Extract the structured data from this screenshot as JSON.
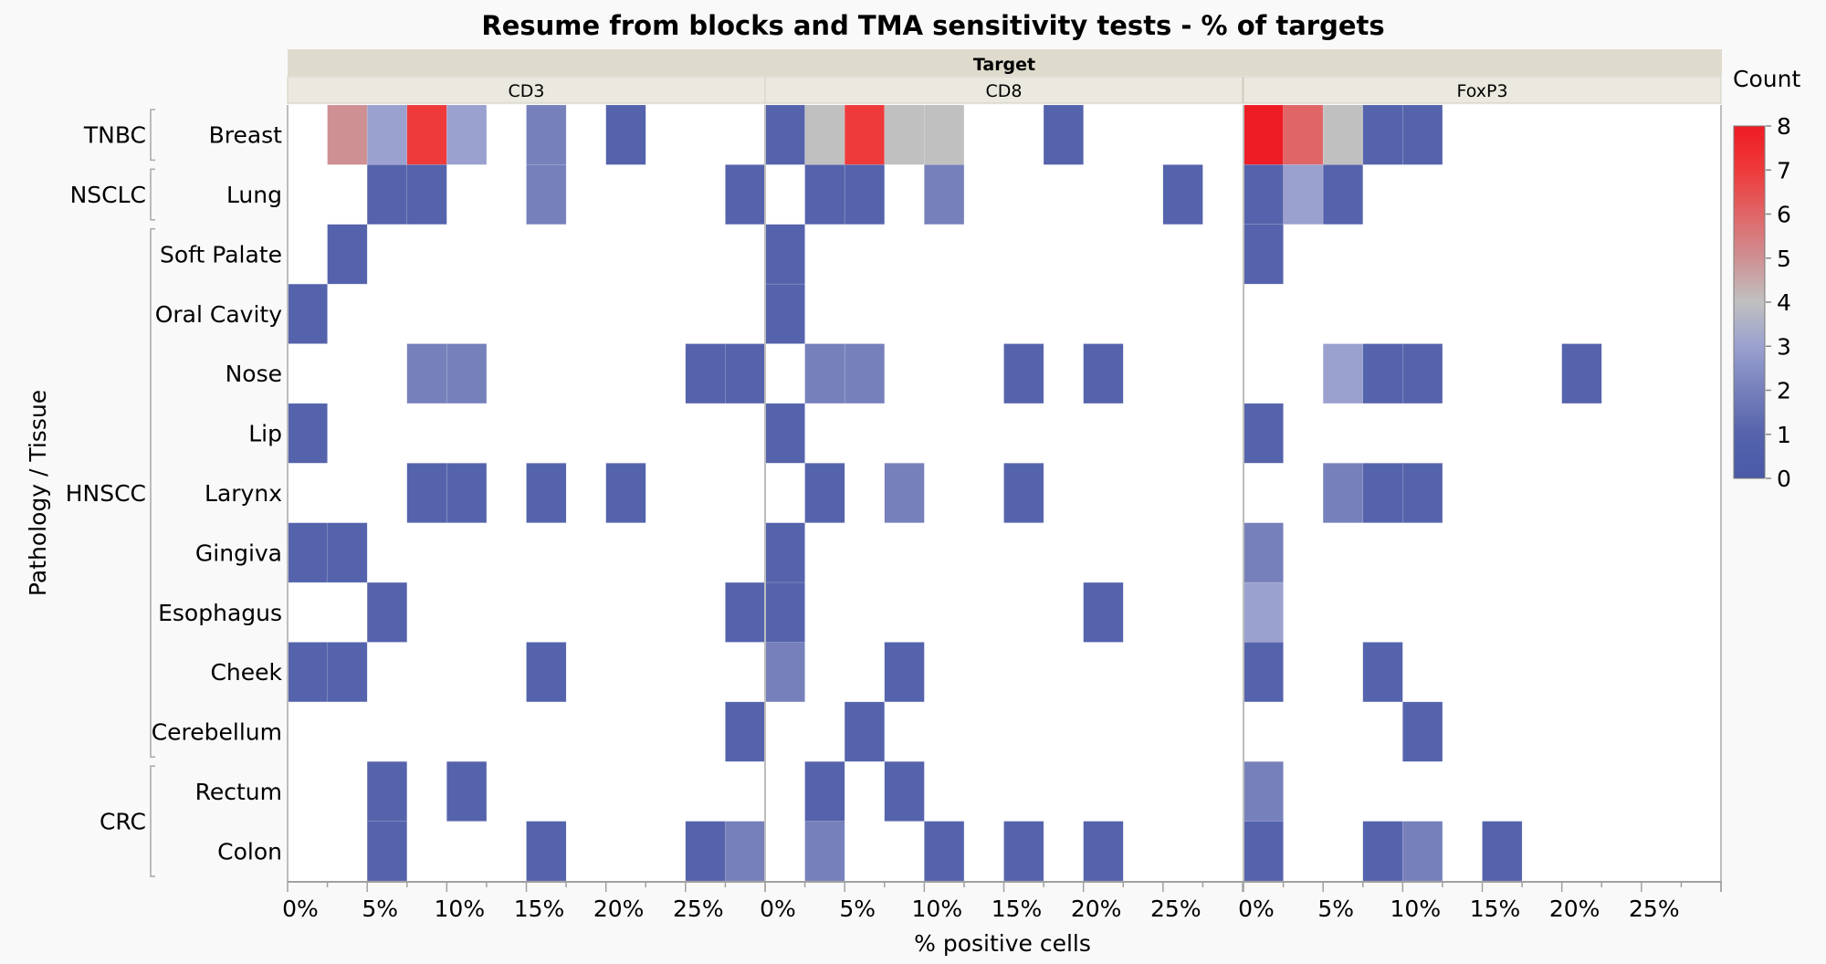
{
  "chart_data": {
    "type": "heatmap",
    "title": "Resume from blocks and TMA sensitivity tests - % of targets",
    "xlabel": "% positive cells",
    "ylabel": "Pathology / Tissue",
    "facet_header": "Target",
    "panels": [
      "CD3",
      "CD8",
      "FoxP3"
    ],
    "x_bin_width_percent": 2.5,
    "x_range_percent": [
      0,
      30
    ],
    "x_ticks": [
      "0%",
      "5%",
      "10%",
      "15%",
      "20%",
      "25%"
    ],
    "x_tick_values": [
      0,
      5,
      10,
      15,
      20,
      25
    ],
    "rows": [
      {
        "group": "TNBC",
        "tissue": "Breast"
      },
      {
        "group": "NSCLC",
        "tissue": "Lung"
      },
      {
        "group": "HNSCC",
        "tissue": "Soft Palate"
      },
      {
        "group": "HNSCC",
        "tissue": "Oral Cavity"
      },
      {
        "group": "HNSCC",
        "tissue": "Nose"
      },
      {
        "group": "HNSCC",
        "tissue": "Lip"
      },
      {
        "group": "HNSCC",
        "tissue": "Larynx"
      },
      {
        "group": "HNSCC",
        "tissue": "Gingiva"
      },
      {
        "group": "HNSCC",
        "tissue": "Esophagus"
      },
      {
        "group": "HNSCC",
        "tissue": "Cheek"
      },
      {
        "group": "HNSCC",
        "tissue": "Cerebellum"
      },
      {
        "group": "CRC",
        "tissue": "Rectum"
      },
      {
        "group": "CRC",
        "tissue": "Colon"
      }
    ],
    "groups": [
      {
        "name": "TNBC",
        "first_row": 0,
        "last_row": 0
      },
      {
        "name": "NSCLC",
        "first_row": 1,
        "last_row": 1
      },
      {
        "name": "HNSCC",
        "first_row": 2,
        "last_row": 10
      },
      {
        "name": "CRC",
        "first_row": 11,
        "last_row": 12
      }
    ],
    "cells_note": "counts per 2.5% bin; bin index 0 = 0-2.5%, 11 = 27.5-30%; empty bins omitted",
    "cells": {
      "CD3": [
        [
          0,
          1,
          5
        ],
        [
          0,
          2,
          3
        ],
        [
          0,
          3,
          7
        ],
        [
          0,
          4,
          3
        ],
        [
          0,
          6,
          2
        ],
        [
          0,
          8,
          1
        ],
        [
          1,
          2,
          1
        ],
        [
          1,
          3,
          1
        ],
        [
          1,
          6,
          2
        ],
        [
          1,
          11,
          1
        ],
        [
          2,
          1,
          1
        ],
        [
          3,
          0,
          1
        ],
        [
          4,
          3,
          2
        ],
        [
          4,
          4,
          2
        ],
        [
          4,
          10,
          1
        ],
        [
          4,
          11,
          1
        ],
        [
          5,
          0,
          1
        ],
        [
          6,
          3,
          1
        ],
        [
          6,
          4,
          1
        ],
        [
          6,
          6,
          1
        ],
        [
          6,
          8,
          1
        ],
        [
          7,
          0,
          1
        ],
        [
          7,
          1,
          1
        ],
        [
          8,
          2,
          1
        ],
        [
          8,
          11,
          1
        ],
        [
          9,
          0,
          1
        ],
        [
          9,
          1,
          1
        ],
        [
          9,
          6,
          1
        ],
        [
          10,
          11,
          1
        ],
        [
          11,
          2,
          1
        ],
        [
          11,
          4,
          1
        ],
        [
          12,
          2,
          1
        ],
        [
          12,
          6,
          1
        ],
        [
          12,
          10,
          1
        ],
        [
          12,
          11,
          2
        ]
      ],
      "CD8": [
        [
          0,
          0,
          1
        ],
        [
          0,
          1,
          4
        ],
        [
          0,
          2,
          7
        ],
        [
          0,
          3,
          4
        ],
        [
          0,
          4,
          4
        ],
        [
          0,
          7,
          1
        ],
        [
          1,
          1,
          1
        ],
        [
          1,
          2,
          1
        ],
        [
          1,
          4,
          2
        ],
        [
          1,
          10,
          1
        ],
        [
          2,
          0,
          1
        ],
        [
          3,
          0,
          1
        ],
        [
          4,
          1,
          2
        ],
        [
          4,
          2,
          2
        ],
        [
          4,
          6,
          1
        ],
        [
          4,
          8,
          1
        ],
        [
          5,
          0,
          1
        ],
        [
          6,
          1,
          1
        ],
        [
          6,
          3,
          2
        ],
        [
          6,
          6,
          1
        ],
        [
          7,
          0,
          1
        ],
        [
          8,
          0,
          1
        ],
        [
          8,
          8,
          1
        ],
        [
          9,
          0,
          2
        ],
        [
          9,
          3,
          1
        ],
        [
          10,
          2,
          1
        ],
        [
          11,
          1,
          1
        ],
        [
          11,
          3,
          1
        ],
        [
          12,
          1,
          2
        ],
        [
          12,
          4,
          1
        ],
        [
          12,
          6,
          1
        ],
        [
          12,
          8,
          1
        ]
      ],
      "FoxP3": [
        [
          0,
          0,
          8
        ],
        [
          0,
          1,
          6
        ],
        [
          0,
          2,
          4
        ],
        [
          0,
          3,
          1
        ],
        [
          0,
          4,
          1
        ],
        [
          1,
          0,
          1
        ],
        [
          1,
          1,
          3
        ],
        [
          1,
          2,
          1
        ],
        [
          2,
          0,
          1
        ],
        [
          4,
          2,
          3
        ],
        [
          4,
          3,
          1
        ],
        [
          4,
          4,
          1
        ],
        [
          4,
          8,
          1
        ],
        [
          5,
          0,
          1
        ],
        [
          6,
          2,
          2
        ],
        [
          6,
          3,
          1
        ],
        [
          6,
          4,
          1
        ],
        [
          7,
          0,
          2
        ],
        [
          8,
          0,
          3
        ],
        [
          9,
          0,
          1
        ],
        [
          9,
          3,
          1
        ],
        [
          10,
          4,
          1
        ],
        [
          11,
          0,
          2
        ],
        [
          12,
          0,
          1
        ],
        [
          12,
          3,
          1
        ],
        [
          12,
          4,
          2
        ],
        [
          12,
          6,
          1
        ]
      ]
    },
    "color_scale": {
      "title": "Count",
      "min": 0,
      "max": 8,
      "ticks": [
        0,
        1,
        2,
        3,
        4,
        5,
        6,
        7,
        8
      ],
      "stops": [
        {
          "value": 0,
          "color": "#4a5aa8"
        },
        {
          "value": 1,
          "color": "#5563ac"
        },
        {
          "value": 2,
          "color": "#7680bb"
        },
        {
          "value": 3,
          "color": "#9aa1cf"
        },
        {
          "value": 4,
          "color": "#c0c0c0"
        },
        {
          "value": 5,
          "color": "#cf9093"
        },
        {
          "value": 6,
          "color": "#e06567"
        },
        {
          "value": 7,
          "color": "#ee3a3a"
        },
        {
          "value": 8,
          "color": "#ee1c24"
        }
      ]
    }
  }
}
